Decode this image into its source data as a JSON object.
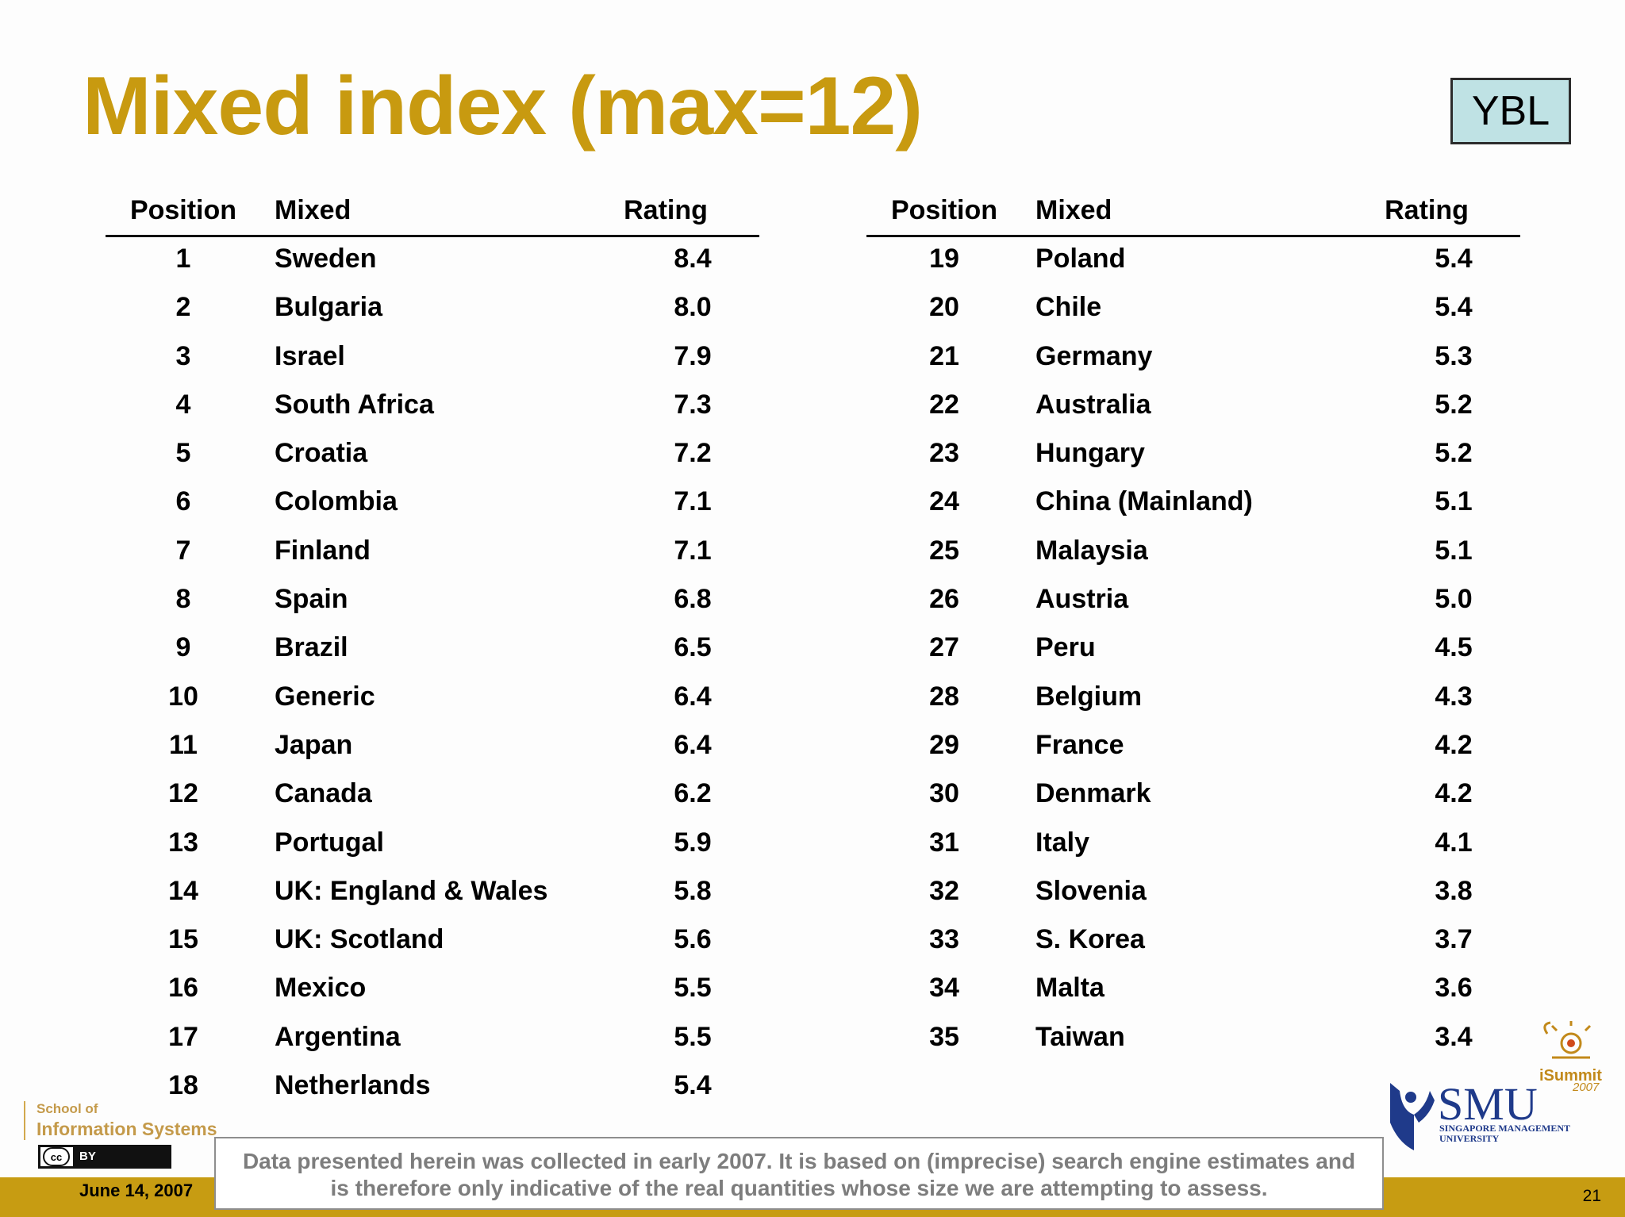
{
  "title": "Mixed index (max=12)",
  "badge": "YBL",
  "headers": {
    "position": "Position",
    "name": "Mixed",
    "rating": "Rating"
  },
  "left_rows": [
    {
      "pos": "1",
      "name": "Sweden",
      "rating": "8.4"
    },
    {
      "pos": "2",
      "name": "Bulgaria",
      "rating": "8.0"
    },
    {
      "pos": "3",
      "name": "Israel",
      "rating": "7.9"
    },
    {
      "pos": "4",
      "name": "South Africa",
      "rating": "7.3"
    },
    {
      "pos": "5",
      "name": "Croatia",
      "rating": "7.2"
    },
    {
      "pos": "6",
      "name": "Colombia",
      "rating": "7.1"
    },
    {
      "pos": "7",
      "name": "Finland",
      "rating": "7.1"
    },
    {
      "pos": "8",
      "name": "Spain",
      "rating": "6.8"
    },
    {
      "pos": "9",
      "name": "Brazil",
      "rating": "6.5"
    },
    {
      "pos": "10",
      "name": "Generic",
      "rating": "6.4"
    },
    {
      "pos": "11",
      "name": "Japan",
      "rating": "6.4"
    },
    {
      "pos": "12",
      "name": "Canada",
      "rating": "6.2"
    },
    {
      "pos": "13",
      "name": "Portugal",
      "rating": "5.9"
    },
    {
      "pos": "14",
      "name": "UK: England & Wales",
      "rating": "5.8"
    },
    {
      "pos": "15",
      "name": "UK: Scotland",
      "rating": "5.6"
    },
    {
      "pos": "16",
      "name": "Mexico",
      "rating": "5.5"
    },
    {
      "pos": "17",
      "name": "Argentina",
      "rating": "5.5"
    },
    {
      "pos": "18",
      "name": "Netherlands",
      "rating": "5.4"
    }
  ],
  "right_rows": [
    {
      "pos": "19",
      "name": "Poland",
      "rating": "5.4"
    },
    {
      "pos": "20",
      "name": "Chile",
      "rating": "5.4"
    },
    {
      "pos": "21",
      "name": "Germany",
      "rating": "5.3"
    },
    {
      "pos": "22",
      "name": "Australia",
      "rating": "5.2"
    },
    {
      "pos": "23",
      "name": "Hungary",
      "rating": "5.2"
    },
    {
      "pos": "24",
      "name": "China (Mainland)",
      "rating": "5.1"
    },
    {
      "pos": "25",
      "name": "Malaysia",
      "rating": "5.1"
    },
    {
      "pos": "26",
      "name": "Austria",
      "rating": "5.0"
    },
    {
      "pos": "27",
      "name": "Peru",
      "rating": "4.5"
    },
    {
      "pos": "28",
      "name": "Belgium",
      "rating": "4.3"
    },
    {
      "pos": "29",
      "name": "France",
      "rating": "4.2"
    },
    {
      "pos": "30",
      "name": "Denmark",
      "rating": "4.2"
    },
    {
      "pos": "31",
      "name": "Italy",
      "rating": "4.1"
    },
    {
      "pos": "32",
      "name": "Slovenia",
      "rating": "3.8"
    },
    {
      "pos": "33",
      "name": "S. Korea",
      "rating": "3.7"
    },
    {
      "pos": "34",
      "name": "Malta",
      "rating": "3.6"
    },
    {
      "pos": "35",
      "name": "Taiwan",
      "rating": "3.4"
    }
  ],
  "footer": {
    "disclaimer_line1": "Data presented herein was collected in early 2007. It is based on (imprecise) search engine estimates and",
    "disclaimer_line2": "is therefore only indicative of the real quantities whose size we are attempting to assess.",
    "date": "June 14, 2007",
    "page": "21",
    "school_line1": "School of",
    "school_line2": "Information Systems",
    "license_cc": "cc",
    "license_by": "BY",
    "smu_name": "SMU",
    "smu_sub1": "SINGAPORE MANAGEMENT",
    "smu_sub2": "UNIVERSITY",
    "isummit": "iSummit",
    "isummit_year": "2007"
  },
  "colors": {
    "accent": "#c89a10",
    "badge_bg": "#bfe2e4",
    "footer_bar": "#c79c12",
    "smu_blue": "#1f3a8a"
  }
}
